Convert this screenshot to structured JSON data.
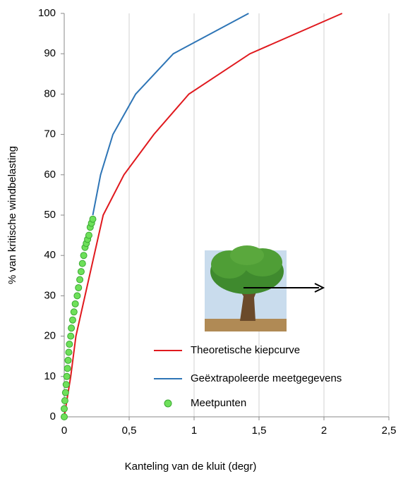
{
  "chart_data": {
    "type": "line",
    "x_label": "Kanteling van de kluit (degr)",
    "y_label": "% van kritische windbelasting",
    "xlim": [
      0,
      2.5
    ],
    "xticks": [
      0,
      {
        "value": 0.5,
        "label": "0,5"
      },
      1,
      {
        "value": 1.5,
        "label": "1,5"
      },
      2,
      {
        "value": 2.5,
        "label": "2,5"
      }
    ],
    "ylim": [
      0,
      100
    ],
    "yticks": [
      0,
      10,
      20,
      30,
      40,
      50,
      60,
      70,
      80,
      90,
      100
    ],
    "grid": true,
    "series": [
      {
        "name": "Theoretische kiepcurve",
        "color": "#e0191e",
        "type": "line",
        "x": [
          0,
          0.05,
          0.09,
          0.16,
          0.23,
          0.3,
          0.46,
          0.69,
          0.96,
          1.43,
          2.14
        ],
        "values": [
          0,
          10,
          20,
          30,
          40,
          50,
          60,
          70,
          80,
          90,
          100
        ]
      },
      {
        "name": "Geëxtrapoleerde meetgegevens",
        "color": "#2e75b6",
        "type": "line",
        "x": [
          0.22,
          0.28,
          0.375,
          0.55,
          0.84,
          1.42
        ],
        "values": [
          50,
          60,
          70,
          80,
          90,
          100
        ]
      },
      {
        "name": "Meetpunten",
        "color": "#6ee05a",
        "type": "scatter",
        "x": [
          0,
          0,
          0.005,
          0.01,
          0.015,
          0.02,
          0.025,
          0.03,
          0.035,
          0.04,
          0.05,
          0.055,
          0.065,
          0.075,
          0.085,
          0.1,
          0.11,
          0.12,
          0.13,
          0.14,
          0.15,
          0.16,
          0.17,
          0.18,
          0.19,
          0.2,
          0.21,
          0.22
        ],
        "values": [
          0,
          2,
          4,
          6,
          8,
          10,
          12,
          14,
          16,
          18,
          20,
          22,
          24,
          26,
          28,
          30,
          32,
          34,
          36,
          38,
          40,
          42,
          43,
          44,
          45,
          47,
          48,
          49
        ]
      }
    ]
  }
}
